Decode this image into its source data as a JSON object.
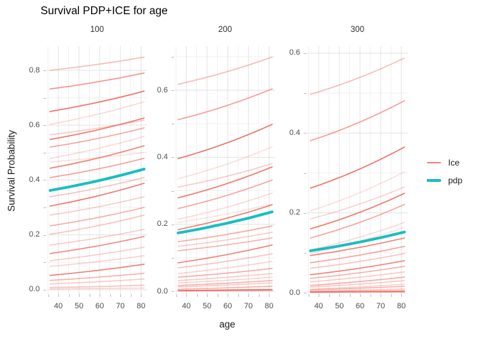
{
  "title": "Survival PDP+ICE for age",
  "colors": {
    "ice": "#F0685C",
    "pdp": "#18BEC0",
    "grid_major": "#E3E3E3",
    "grid_minor": "#F1F1F1",
    "tick_mark": "#C2C2C2",
    "tick_text": "#4D4D4D",
    "strip_text": "#2E2E2E",
    "axis_title_text": "#1A1A1A",
    "title_text": "#000000",
    "background": "#FFFFFF"
  },
  "legend": {
    "items": [
      {
        "label": "Ice",
        "series": "ice"
      },
      {
        "label": "pdp",
        "series": "pdp"
      }
    ]
  },
  "chart_data": {
    "type": "line",
    "title": "Survival PDP+ICE for age",
    "xlabel": "age",
    "ylabel": "Survival Probability",
    "x_domain": [
      34.5,
      83.0
    ],
    "line_x_span": [
      36,
      81.5
    ],
    "x_minor_step": 5,
    "grid": true,
    "legend_position": "right",
    "facets": [
      {
        "label": "100",
        "ylim": [
          -0.016,
          0.888
        ],
        "y_ticks": [
          "0.0",
          "0.2",
          "0.4",
          "0.6",
          "0.8"
        ],
        "x_ticks": [
          "40",
          "50",
          "60",
          "70",
          "80"
        ],
        "ice_lines": [
          [
            0.8,
            0.848,
            0.45
          ],
          [
            0.732,
            0.79,
            0.7
          ],
          [
            0.65,
            0.724,
            0.95
          ],
          [
            0.603,
            0.685,
            0.25
          ],
          [
            0.565,
            0.618,
            0.35
          ],
          [
            0.548,
            0.626,
            0.9
          ],
          [
            0.52,
            0.59,
            0.6
          ],
          [
            0.479,
            0.559,
            0.25
          ],
          [
            0.466,
            0.5,
            0.2
          ],
          [
            0.443,
            0.525,
            0.85
          ],
          [
            0.409,
            0.479,
            0.65
          ],
          [
            0.339,
            0.409,
            0.4
          ],
          [
            0.305,
            0.388,
            0.9
          ],
          [
            0.272,
            0.339,
            0.35
          ],
          [
            0.233,
            0.3,
            0.55
          ],
          [
            0.202,
            0.272,
            0.4
          ],
          [
            0.163,
            0.22,
            0.35
          ],
          [
            0.132,
            0.194,
            0.8
          ],
          [
            0.106,
            0.155,
            0.35
          ],
          [
            0.085,
            0.124,
            0.3
          ],
          [
            0.052,
            0.093,
            0.85
          ],
          [
            0.034,
            0.06,
            0.5
          ],
          [
            0.021,
            0.039,
            0.35
          ],
          [
            0.008,
            0.016,
            0.4
          ],
          [
            0.003,
            0.006,
            0.3
          ]
        ],
        "pdp_line": [
          0.362,
          0.44
        ]
      },
      {
        "label": "200",
        "ylim": [
          -0.0085,
          0.7314
        ],
        "y_ticks": [
          "0.0",
          "0.2",
          "0.4",
          "0.6"
        ],
        "x_ticks": [
          "40",
          "50",
          "60",
          "70",
          "80"
        ],
        "ice_lines": [
          [
            0.618,
            0.699,
            0.45
          ],
          [
            0.512,
            0.604,
            0.65
          ],
          [
            0.396,
            0.498,
            0.95
          ],
          [
            0.336,
            0.431,
            0.22
          ],
          [
            0.311,
            0.381,
            0.35
          ],
          [
            0.279,
            0.371,
            0.9
          ],
          [
            0.247,
            0.332,
            0.6
          ],
          [
            0.215,
            0.293,
            0.25
          ],
          [
            0.205,
            0.261,
            0.2
          ],
          [
            0.184,
            0.258,
            0.85
          ],
          [
            0.148,
            0.195,
            0.55
          ],
          [
            0.134,
            0.176,
            0.35
          ],
          [
            0.121,
            0.159,
            0.5
          ],
          [
            0.085,
            0.138,
            0.85
          ],
          [
            0.07,
            0.112,
            0.4
          ],
          [
            0.053,
            0.089,
            0.3
          ],
          [
            0.042,
            0.068,
            0.55
          ],
          [
            0.032,
            0.053,
            0.35
          ],
          [
            0.025,
            0.042,
            0.3
          ],
          [
            0.017,
            0.032,
            0.5
          ],
          [
            0.013,
            0.025,
            0.35
          ],
          [
            0.006,
            0.015,
            0.5
          ],
          [
            0.002,
            0.005,
            0.95
          ],
          [
            0.001,
            0.002,
            0.6
          ]
        ],
        "pdp_line": [
          0.174,
          0.237
        ]
      },
      {
        "label": "300",
        "ylim": [
          -0.0036,
          0.6177
        ],
        "y_ticks": [
          "0.0",
          "0.2",
          "0.4",
          "0.6"
        ],
        "x_ticks": [
          "40",
          "50",
          "60",
          "70",
          "80"
        ],
        "ice_lines": [
          [
            0.497,
            0.588,
            0.45
          ],
          [
            0.381,
            0.481,
            0.65
          ],
          [
            0.262,
            0.365,
            0.95
          ],
          [
            0.205,
            0.303,
            0.22
          ],
          [
            0.185,
            0.265,
            0.3
          ],
          [
            0.16,
            0.249,
            0.9
          ],
          [
            0.137,
            0.221,
            0.6
          ],
          [
            0.107,
            0.176,
            0.25
          ],
          [
            0.098,
            0.164,
            0.2
          ],
          [
            0.093,
            0.137,
            0.85
          ],
          [
            0.075,
            0.116,
            0.6
          ],
          [
            0.061,
            0.098,
            0.4
          ],
          [
            0.045,
            0.08,
            0.85
          ],
          [
            0.036,
            0.066,
            0.5
          ],
          [
            0.027,
            0.052,
            0.35
          ],
          [
            0.018,
            0.039,
            0.55
          ],
          [
            0.014,
            0.03,
            0.35
          ],
          [
            0.009,
            0.021,
            0.3
          ],
          [
            0.007,
            0.016,
            0.5
          ],
          [
            0.004,
            0.009,
            0.4
          ],
          [
            0.002,
            0.004,
            0.95
          ],
          [
            0.001,
            0.002,
            0.6
          ]
        ],
        "pdp_line": [
          0.105,
          0.152
        ]
      }
    ]
  }
}
